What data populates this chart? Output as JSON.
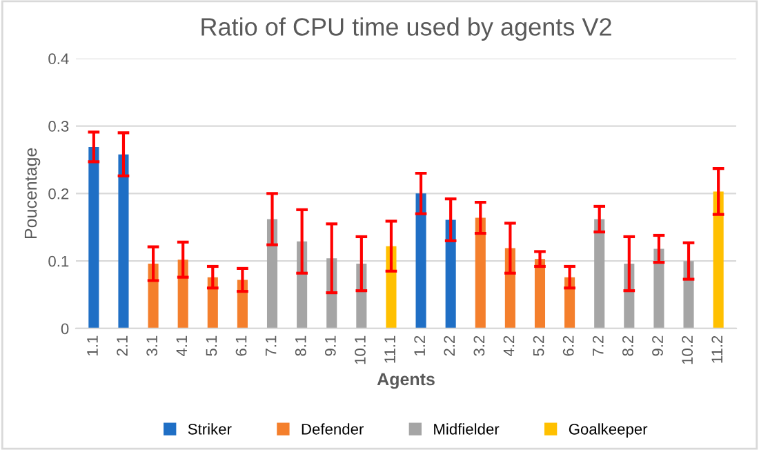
{
  "chart_data": {
    "type": "bar",
    "title": "Ratio of CPU time used by agents V2",
    "xlabel": "Agents",
    "ylabel": "Poucentage",
    "categories": [
      "1.1",
      "2.1",
      "3.1",
      "4.1",
      "5.1",
      "6.1",
      "7.1",
      "8.1",
      "9.1",
      "10.1",
      "11.1",
      "1.2",
      "2.2",
      "3.2",
      "4.2",
      "5.2",
      "6.2",
      "7.2",
      "8.2",
      "9.2",
      "10.2",
      "11.2"
    ],
    "series": [
      {
        "name": "Striker",
        "color": "#1f6fc5",
        "values": [
          0.269,
          0.258,
          null,
          null,
          null,
          null,
          null,
          null,
          null,
          null,
          null,
          0.2,
          0.161,
          null,
          null,
          null,
          null,
          null,
          null,
          null,
          null,
          null
        ],
        "errors": [
          0.022,
          0.032,
          null,
          null,
          null,
          null,
          null,
          null,
          null,
          null,
          null,
          0.03,
          0.031,
          null,
          null,
          null,
          null,
          null,
          null,
          null,
          null,
          null
        ]
      },
      {
        "name": "Defender",
        "color": "#f47f2c",
        "values": [
          null,
          null,
          0.096,
          0.102,
          0.076,
          0.072,
          null,
          null,
          null,
          null,
          null,
          null,
          null,
          0.164,
          0.119,
          0.103,
          0.076,
          null,
          null,
          null,
          null,
          null
        ],
        "errors": [
          null,
          null,
          0.025,
          0.026,
          0.016,
          0.017,
          null,
          null,
          null,
          null,
          null,
          null,
          null,
          0.023,
          0.037,
          0.011,
          0.016,
          null,
          null,
          null,
          null,
          null
        ]
      },
      {
        "name": "Midfielder",
        "color": "#a5a5a5",
        "values": [
          null,
          null,
          null,
          null,
          null,
          null,
          0.162,
          0.129,
          0.104,
          0.096,
          null,
          null,
          null,
          null,
          null,
          null,
          null,
          0.162,
          0.096,
          0.118,
          0.1,
          null
        ],
        "errors": [
          null,
          null,
          null,
          null,
          null,
          null,
          0.038,
          0.047,
          0.051,
          0.04,
          null,
          null,
          null,
          null,
          null,
          null,
          null,
          0.019,
          0.04,
          0.02,
          0.027,
          null
        ]
      },
      {
        "name": "Goalkeeper",
        "color": "#ffc000",
        "values": [
          null,
          null,
          null,
          null,
          null,
          null,
          null,
          null,
          null,
          null,
          0.122,
          null,
          null,
          null,
          null,
          null,
          null,
          null,
          null,
          null,
          null,
          0.203
        ],
        "errors": [
          null,
          null,
          null,
          null,
          null,
          null,
          null,
          null,
          null,
          null,
          0.037,
          null,
          null,
          null,
          null,
          null,
          null,
          null,
          null,
          null,
          null,
          0.034
        ]
      }
    ],
    "ylim": [
      0,
      0.4
    ],
    "yticks": [
      0,
      0.1,
      0.2,
      0.3,
      0.4
    ],
    "grid": "y",
    "legend": "bottom"
  }
}
